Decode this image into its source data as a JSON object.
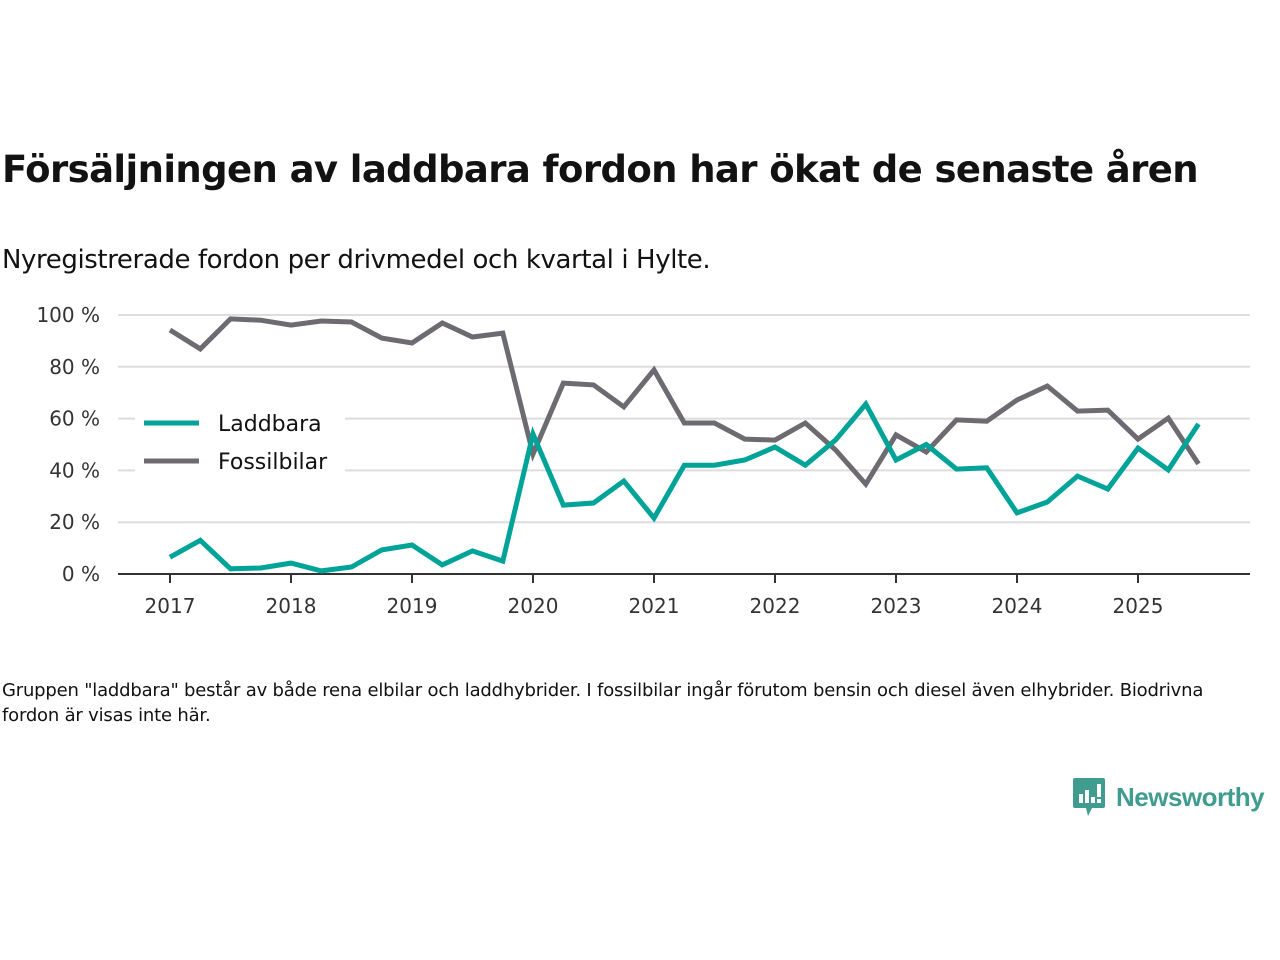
{
  "title": "Försäljningen av laddbara fordon har ökat de senaste åren",
  "subtitle": "Nyregistrerade fordon per drivmedel och kvartal i Hylte.",
  "note": "Gruppen \"laddbara\" består av både rena elbilar och laddhybrider. I fossilbilar ingår förutom bensin och diesel även elhybrider. Biodrivna fordon är visas inte här.",
  "brand": {
    "name": "Newsworthy",
    "icon": "newsworthy-logo-icon",
    "color": "#3f9c8f"
  },
  "chart_data": {
    "type": "line",
    "title": "Försäljningen av laddbara fordon har ökat de senaste åren",
    "subtitle": "Nyregistrerade fordon per drivmedel och kvartal i Hylte.",
    "xlabel": "",
    "ylabel": "",
    "x_unit": "quarter",
    "x_start": "2017 Q1",
    "x_end": "2025 Q3",
    "x": [
      "2017Q1",
      "2017Q2",
      "2017Q3",
      "2017Q4",
      "2018Q1",
      "2018Q2",
      "2018Q3",
      "2018Q4",
      "2019Q1",
      "2019Q2",
      "2019Q3",
      "2019Q4",
      "2020Q1",
      "2020Q2",
      "2020Q3",
      "2020Q4",
      "2021Q1",
      "2021Q2",
      "2021Q3",
      "2021Q4",
      "2022Q1",
      "2022Q2",
      "2022Q3",
      "2022Q4",
      "2023Q1",
      "2023Q2",
      "2023Q3",
      "2023Q4",
      "2024Q1",
      "2024Q2",
      "2024Q3",
      "2024Q4",
      "2025Q1",
      "2025Q2",
      "2025Q3"
    ],
    "x_ticks": [
      "2017",
      "2018",
      "2019",
      "2020",
      "2021",
      "2022",
      "2023",
      "2024",
      "2025"
    ],
    "ylim": [
      0,
      100
    ],
    "y_ticks": [
      0,
      20,
      40,
      60,
      80,
      100
    ],
    "y_tick_labels": [
      "0 %",
      "20 %",
      "40 %",
      "60 %",
      "80 %",
      "100 %"
    ],
    "grid": true,
    "legend_position": "left-middle",
    "series": [
      {
        "name": "Laddbara",
        "color": "#00a398",
        "values": [
          6.5,
          13,
          2,
          2.3,
          4.2,
          1.2,
          2.7,
          9.3,
          11.2,
          3.5,
          8.9,
          5,
          54,
          26.6,
          27.4,
          35.9,
          21.6,
          42,
          42,
          44,
          49,
          42,
          51.7,
          65.6,
          44,
          50,
          40.5,
          41,
          23.6,
          27.8,
          37.8,
          32.8,
          48.6,
          40.2,
          57.9
        ]
      },
      {
        "name": "Fossilbilar",
        "color": "#6d6b71",
        "values": [
          94.2,
          86.9,
          98.5,
          98,
          96.1,
          97.7,
          97.3,
          91.1,
          89.2,
          96.9,
          91.5,
          93,
          46.3,
          73.7,
          73,
          64.5,
          78.8,
          58.3,
          58.3,
          52.1,
          51.7,
          58.3,
          47.9,
          34.7,
          53.7,
          47.1,
          59.5,
          59,
          67.2,
          72.6,
          62.9,
          63.3,
          52.1,
          60.2,
          42.5
        ]
      }
    ]
  }
}
